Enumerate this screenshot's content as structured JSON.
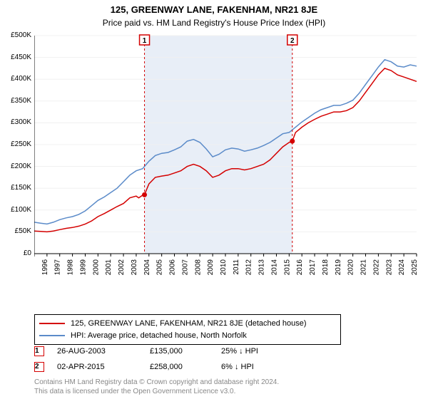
{
  "title": "125, GREENWAY LANE, FAKENHAM, NR21 8JE",
  "subtitle": "Price paid vs. HM Land Registry's House Price Index (HPI)",
  "chart": {
    "type": "line",
    "xlim": [
      1995,
      2025
    ],
    "ylim": [
      0,
      500000
    ],
    "ytick_step": 50000,
    "xtick_step": 1,
    "ytick_format_prefix": "£",
    "ytick_format_suffix": "K",
    "background_color": "#ffffff",
    "shade_color": "#e8eef7",
    "grid_color": "#f0f0f0",
    "axis_color": "#000000",
    "line_width": 1.5,
    "shaded_band": {
      "x_from": 2003.65,
      "x_to": 2015.25
    },
    "series": [
      {
        "name": "property",
        "label": "125, GREENWAY LANE, FAKENHAM, NR21 8JE (detached house)",
        "color": "#d40000",
        "data": [
          [
            1995.0,
            52000
          ],
          [
            1995.5,
            51000
          ],
          [
            1996.0,
            50000
          ],
          [
            1996.5,
            52000
          ],
          [
            1997.0,
            55000
          ],
          [
            1997.5,
            58000
          ],
          [
            1998.0,
            60000
          ],
          [
            1998.5,
            63000
          ],
          [
            1999.0,
            68000
          ],
          [
            1999.5,
            75000
          ],
          [
            2000.0,
            85000
          ],
          [
            2000.5,
            92000
          ],
          [
            2001.0,
            100000
          ],
          [
            2001.5,
            108000
          ],
          [
            2002.0,
            115000
          ],
          [
            2002.5,
            128000
          ],
          [
            2003.0,
            132000
          ],
          [
            2003.2,
            128000
          ],
          [
            2003.5,
            134000
          ],
          [
            2003.65,
            135000
          ],
          [
            2004.0,
            160000
          ],
          [
            2004.5,
            175000
          ],
          [
            2005.0,
            178000
          ],
          [
            2005.5,
            180000
          ],
          [
            2006.0,
            185000
          ],
          [
            2006.5,
            190000
          ],
          [
            2007.0,
            200000
          ],
          [
            2007.5,
            205000
          ],
          [
            2008.0,
            200000
          ],
          [
            2008.5,
            190000
          ],
          [
            2009.0,
            175000
          ],
          [
            2009.5,
            180000
          ],
          [
            2010.0,
            190000
          ],
          [
            2010.5,
            195000
          ],
          [
            2011.0,
            195000
          ],
          [
            2011.5,
            192000
          ],
          [
            2012.0,
            195000
          ],
          [
            2012.5,
            200000
          ],
          [
            2013.0,
            205000
          ],
          [
            2013.5,
            215000
          ],
          [
            2014.0,
            230000
          ],
          [
            2014.5,
            245000
          ],
          [
            2015.0,
            255000
          ],
          [
            2015.25,
            258000
          ],
          [
            2015.5,
            278000
          ],
          [
            2016.0,
            290000
          ],
          [
            2016.5,
            300000
          ],
          [
            2017.0,
            308000
          ],
          [
            2017.5,
            315000
          ],
          [
            2018.0,
            320000
          ],
          [
            2018.5,
            325000
          ],
          [
            2019.0,
            325000
          ],
          [
            2019.5,
            328000
          ],
          [
            2020.0,
            335000
          ],
          [
            2020.5,
            350000
          ],
          [
            2021.0,
            370000
          ],
          [
            2021.5,
            390000
          ],
          [
            2022.0,
            410000
          ],
          [
            2022.5,
            425000
          ],
          [
            2023.0,
            420000
          ],
          [
            2023.5,
            410000
          ],
          [
            2024.0,
            405000
          ],
          [
            2024.5,
            400000
          ],
          [
            2025.0,
            395000
          ]
        ]
      },
      {
        "name": "hpi",
        "label": "HPI: Average price, detached house, North Norfolk",
        "color": "#5b8bc9",
        "data": [
          [
            1995.0,
            72000
          ],
          [
            1995.5,
            70000
          ],
          [
            1996.0,
            68000
          ],
          [
            1996.5,
            72000
          ],
          [
            1997.0,
            78000
          ],
          [
            1997.5,
            82000
          ],
          [
            1998.0,
            85000
          ],
          [
            1998.5,
            90000
          ],
          [
            1999.0,
            98000
          ],
          [
            1999.5,
            110000
          ],
          [
            2000.0,
            122000
          ],
          [
            2000.5,
            130000
          ],
          [
            2001.0,
            140000
          ],
          [
            2001.5,
            150000
          ],
          [
            2002.0,
            165000
          ],
          [
            2002.5,
            180000
          ],
          [
            2003.0,
            190000
          ],
          [
            2003.5,
            195000
          ],
          [
            2004.0,
            212000
          ],
          [
            2004.5,
            225000
          ],
          [
            2005.0,
            230000
          ],
          [
            2005.5,
            232000
          ],
          [
            2006.0,
            238000
          ],
          [
            2006.5,
            245000
          ],
          [
            2007.0,
            258000
          ],
          [
            2007.5,
            262000
          ],
          [
            2008.0,
            255000
          ],
          [
            2008.5,
            240000
          ],
          [
            2009.0,
            222000
          ],
          [
            2009.5,
            228000
          ],
          [
            2010.0,
            238000
          ],
          [
            2010.5,
            242000
          ],
          [
            2011.0,
            240000
          ],
          [
            2011.5,
            235000
          ],
          [
            2012.0,
            238000
          ],
          [
            2012.5,
            242000
          ],
          [
            2013.0,
            248000
          ],
          [
            2013.5,
            255000
          ],
          [
            2014.0,
            265000
          ],
          [
            2014.5,
            275000
          ],
          [
            2015.0,
            278000
          ],
          [
            2015.5,
            290000
          ],
          [
            2016.0,
            302000
          ],
          [
            2016.5,
            312000
          ],
          [
            2017.0,
            322000
          ],
          [
            2017.5,
            330000
          ],
          [
            2018.0,
            335000
          ],
          [
            2018.5,
            340000
          ],
          [
            2019.0,
            340000
          ],
          [
            2019.5,
            345000
          ],
          [
            2020.0,
            352000
          ],
          [
            2020.5,
            368000
          ],
          [
            2021.0,
            388000
          ],
          [
            2021.5,
            408000
          ],
          [
            2022.0,
            428000
          ],
          [
            2022.5,
            445000
          ],
          [
            2023.0,
            440000
          ],
          [
            2023.5,
            430000
          ],
          [
            2024.0,
            428000
          ],
          [
            2024.5,
            433000
          ],
          [
            2025.0,
            430000
          ]
        ]
      }
    ],
    "markers": [
      {
        "n": "1",
        "x": 2003.65,
        "y": 135000,
        "color": "#d40000"
      },
      {
        "n": "2",
        "x": 2015.25,
        "y": 258000,
        "color": "#d40000"
      }
    ],
    "marker_labels": [
      {
        "n": "1",
        "x": 2003.65,
        "color": "#d40000"
      },
      {
        "n": "2",
        "x": 2015.25,
        "color": "#d40000"
      }
    ]
  },
  "legend": {
    "series0": "125, GREENWAY LANE, FAKENHAM, NR21 8JE (detached house)",
    "series1": "HPI: Average price, detached house, North Norfolk"
  },
  "sales": [
    {
      "n": "1",
      "date": "26-AUG-2003",
      "price": "£135,000",
      "diff": "25% ↓ HPI",
      "color": "#d40000"
    },
    {
      "n": "2",
      "date": "02-APR-2015",
      "price": "£258,000",
      "diff": "6% ↓ HPI",
      "color": "#d40000"
    }
  ],
  "footnote_line1": "Contains HM Land Registry data © Crown copyright and database right 2024.",
  "footnote_line2": "This data is licensed under the Open Government Licence v3.0."
}
